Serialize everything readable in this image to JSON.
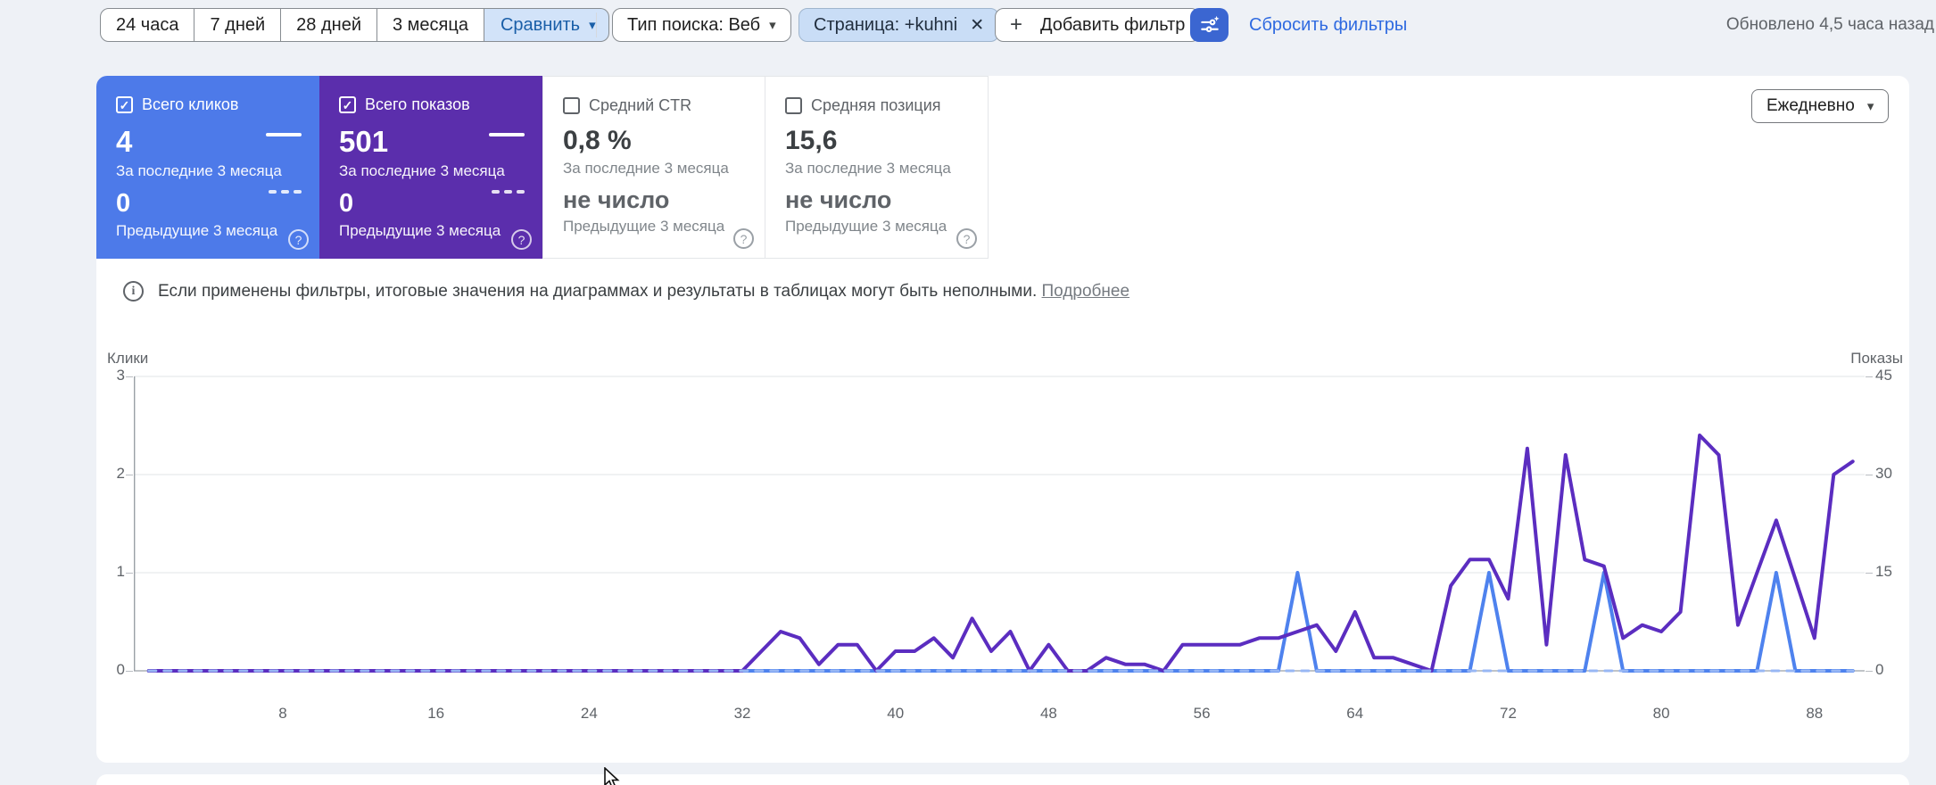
{
  "colors": {
    "page_bg": "#eef1f6",
    "clicks_card_bg": "#4d7ae9",
    "impressions_card_bg": "#5b2eac",
    "clicks_line": "#4e82ee",
    "impressions_line": "#5b2dc0",
    "previous_period_line": "#98b7f4",
    "chip_bg": "#c9ddf6",
    "filter_button_bg": "#3b66d1",
    "link_blue": "#2f6ae0"
  },
  "toolbar": {
    "date_range_buttons": [
      "24 часа",
      "7 дней",
      "28 дней",
      "3 месяца"
    ],
    "compare_button": "Сравнить",
    "search_type_filter": "Тип поиска: Веб",
    "page_filter": "Страница: +kuhni",
    "close_glyph": "✕",
    "plus_glyph": "+",
    "add_filter_button": "Добавить фильтр",
    "reset_filters_link": "Сбросить фильтры",
    "updated_status": "Обновлено 4,5 часа назад",
    "caret_glyph": "▾"
  },
  "metric_cards": [
    {
      "label": "Всего кликов",
      "checked": true,
      "current_value": "4",
      "current_caption": "За последние 3 месяца",
      "previous_value": "0",
      "previous_caption": "Предыдущие 3 месяца",
      "help_glyph": "?"
    },
    {
      "label": "Всего показов",
      "checked": true,
      "current_value": "501",
      "current_caption": "За последние 3 месяца",
      "previous_value": "0",
      "previous_caption": "Предыдущие 3 месяца",
      "help_glyph": "?"
    },
    {
      "label": "Средний CTR",
      "checked": false,
      "current_value": "0,8 %",
      "current_caption": "За последние 3 месяца",
      "previous_value": "не число",
      "previous_caption": "Предыдущие 3 месяца",
      "help_glyph": "?"
    },
    {
      "label": "Средняя позиция",
      "checked": false,
      "current_value": "15,6",
      "current_caption": "За последние 3 месяца",
      "previous_value": "не число",
      "previous_caption": "Предыдущие 3 месяца",
      "help_glyph": "?"
    }
  ],
  "granularity_dropdown": {
    "value": "Ежедневно"
  },
  "info_banner": {
    "text": "Если применены фильтры, итоговые значения на диаграммах и результаты в таблицах могут быть неполными.",
    "link_label": "Подробнее"
  },
  "chart_data": {
    "type": "line",
    "title": "",
    "x_description": "Дни за последние 3 месяца (1–90)",
    "x_ticks": [
      8,
      16,
      24,
      32,
      40,
      48,
      56,
      64,
      72,
      80,
      88
    ],
    "left_axis": {
      "title": "Клики",
      "ticks": [
        0,
        1,
        2,
        3
      ],
      "max": 3
    },
    "right_axis": {
      "title": "Показы",
      "ticks": [
        0,
        15,
        30,
        45
      ],
      "max": 45
    },
    "grid": true,
    "series": [
      {
        "name": "Клики (за последние 3 месяца)",
        "axis": "left",
        "color": "#4e82ee",
        "style": "solid",
        "values": [
          0,
          0,
          0,
          0,
          0,
          0,
          0,
          0,
          0,
          0,
          0,
          0,
          0,
          0,
          0,
          0,
          0,
          0,
          0,
          0,
          0,
          0,
          0,
          0,
          0,
          0,
          0,
          0,
          0,
          0,
          0,
          0,
          0,
          0,
          0,
          0,
          0,
          0,
          0,
          0,
          0,
          0,
          0,
          0,
          0,
          0,
          0,
          0,
          0,
          0,
          0,
          0,
          0,
          0,
          0,
          0,
          0,
          0,
          0,
          0,
          1,
          0,
          0,
          0,
          0,
          0,
          0,
          0,
          0,
          0,
          1,
          0,
          0,
          0,
          0,
          0,
          1,
          0,
          0,
          0,
          0,
          0,
          0,
          0,
          0,
          1,
          0,
          0,
          0,
          0
        ]
      },
      {
        "name": "Показы (за последние 3 месяца)",
        "axis": "right",
        "color": "#5b2dc0",
        "style": "solid",
        "values": [
          0,
          0,
          0,
          0,
          0,
          0,
          0,
          0,
          0,
          0,
          0,
          0,
          0,
          0,
          0,
          0,
          0,
          0,
          0,
          0,
          0,
          0,
          0,
          0,
          0,
          0,
          0,
          0,
          0,
          0,
          0,
          0,
          3,
          6,
          5,
          1,
          4,
          4,
          0,
          3,
          3,
          5,
          2,
          8,
          3,
          6,
          0,
          4,
          0,
          0,
          2,
          1,
          1,
          0,
          4,
          4,
          4,
          4,
          5,
          5,
          6,
          7,
          3,
          9,
          2,
          2,
          1,
          0,
          13,
          17,
          17,
          11,
          34,
          4,
          33,
          17,
          16,
          5,
          7,
          6,
          9,
          36,
          33,
          7,
          15,
          23,
          14,
          5,
          30,
          32
        ]
      },
      {
        "name": "Предыдущие 3 месяца",
        "axis": "left",
        "color": "#98b7f4",
        "style": "dashed",
        "constant_value": 0
      }
    ],
    "totals": {
      "clicks": 4,
      "impressions": 501
    }
  }
}
